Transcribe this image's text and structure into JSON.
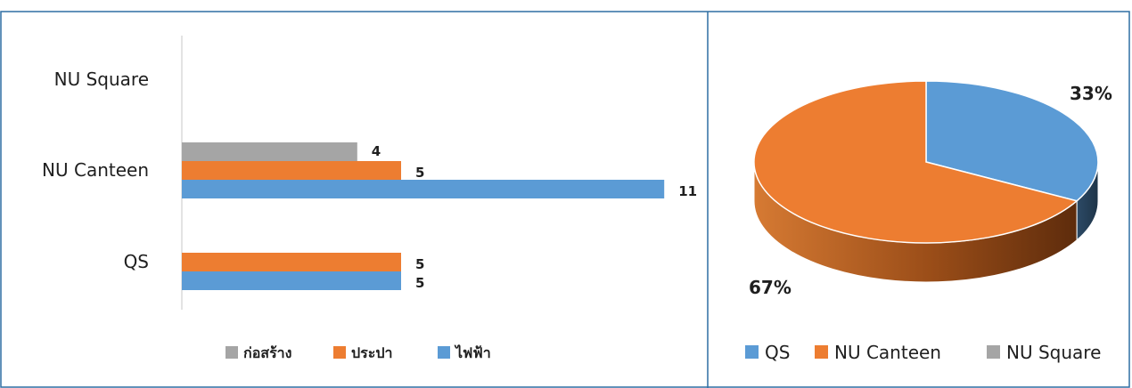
{
  "chart_data": [
    {
      "type": "bar",
      "orientation": "horizontal",
      "categories": [
        "QS",
        "NU Canteen",
        "NU Square"
      ],
      "series": [
        {
          "name": "ก่อสร้าง",
          "color": "#a5a5a5",
          "values": [
            null,
            4,
            null
          ]
        },
        {
          "name": "ประปา",
          "color": "#ed7d31",
          "values": [
            5,
            5,
            null
          ]
        },
        {
          "name": "ไฟฟ้า",
          "color": "#5b9bd5",
          "values": [
            5,
            11,
            null
          ]
        }
      ],
      "xlim": [
        0,
        12
      ],
      "legend_position": "bottom",
      "grid": false
    },
    {
      "type": "pie",
      "style": "3d",
      "labels": [
        "QS",
        "NU Canteen",
        "NU Square"
      ],
      "values": [
        33,
        67,
        0
      ],
      "data_labels": [
        "33%",
        "67%",
        ""
      ],
      "colors": [
        "#5b9bd5",
        "#ed7d31",
        "#a5a5a5"
      ],
      "legend_position": "bottom"
    }
  ]
}
